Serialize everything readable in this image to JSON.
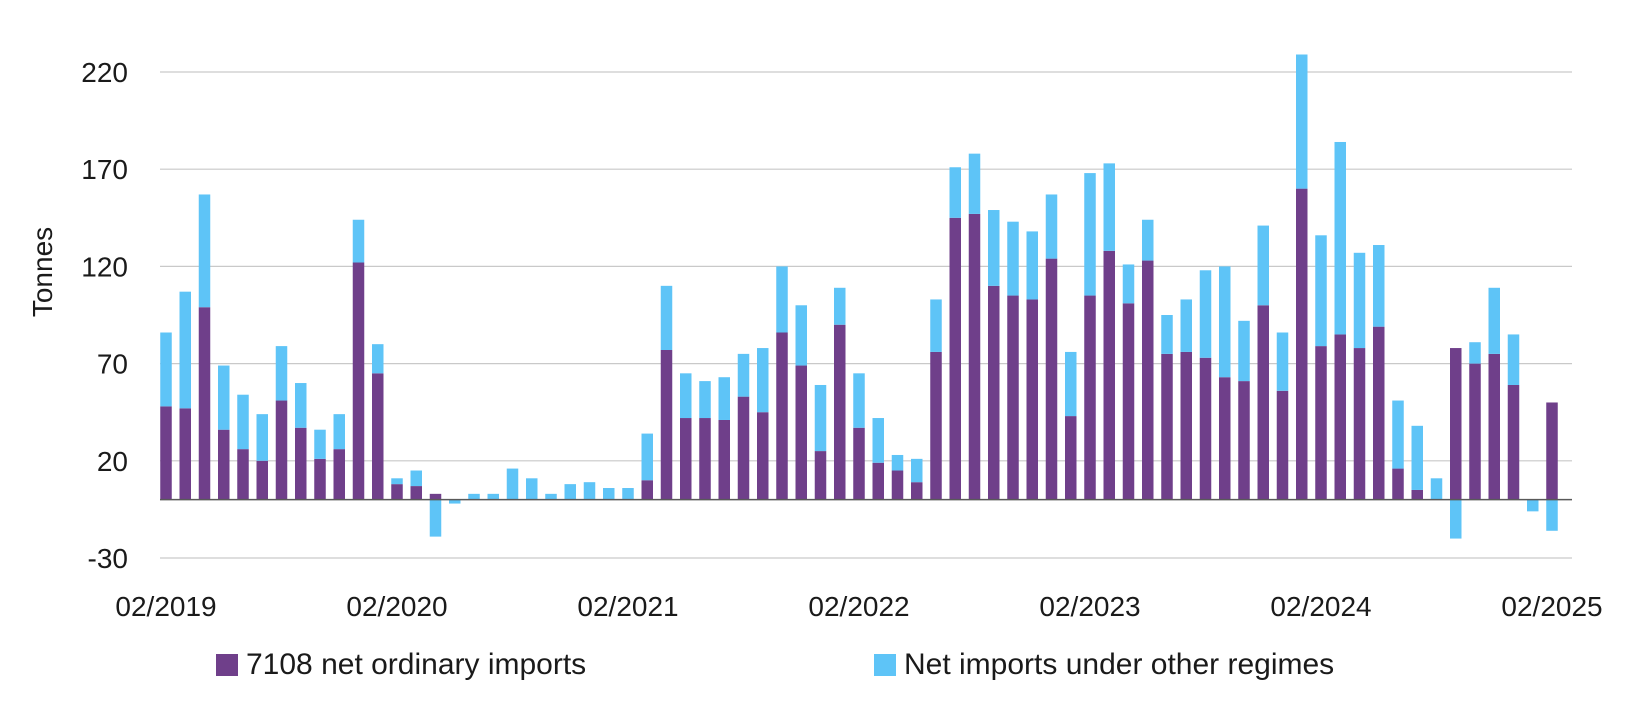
{
  "chart_data": {
    "type": "bar",
    "stacked": true,
    "ylabel": "Tonnes",
    "xlabel": "",
    "ylim": [
      -30,
      220
    ],
    "yticks": [
      220,
      170,
      120,
      70,
      20,
      -30
    ],
    "xticks": [
      "02/2019",
      "02/2020",
      "02/2021",
      "02/2022",
      "02/2023",
      "02/2024",
      "02/2025"
    ],
    "grid": true,
    "legend_position": "bottom",
    "series": [
      {
        "name": "7108 net ordinary imports",
        "color": "#6F3F8A",
        "values": [
          48,
          47,
          99,
          36,
          26,
          20,
          51,
          37,
          21,
          26,
          122,
          65,
          8,
          7,
          3,
          0,
          0,
          0,
          0,
          0,
          0,
          0,
          0,
          0,
          0,
          10,
          77,
          42,
          42,
          41,
          53,
          45,
          86,
          69,
          25,
          90,
          37,
          19,
          15,
          9,
          76,
          145,
          147,
          110,
          105,
          103,
          124,
          43,
          105,
          128,
          101,
          123,
          75,
          76,
          73,
          63,
          61,
          100,
          56,
          160,
          79,
          85,
          78,
          89,
          16,
          5,
          0,
          78,
          70,
          75,
          59,
          0,
          50
        ]
      },
      {
        "name": "Net imports under other regimes",
        "color": "#5EC4F7",
        "values": [
          38,
          60,
          58,
          33,
          28,
          24,
          28,
          23,
          15,
          18,
          22,
          15,
          3,
          8,
          -19,
          -2,
          3,
          3,
          16,
          11,
          3,
          8,
          9,
          6,
          6,
          24,
          33,
          23,
          19,
          22,
          22,
          33,
          34,
          31,
          34,
          19,
          28,
          23,
          8,
          12,
          27,
          26,
          31,
          39,
          38,
          35,
          33,
          33,
          63,
          45,
          20,
          21,
          20,
          27,
          45,
          57,
          31,
          41,
          30,
          69,
          57,
          99,
          49,
          42,
          35,
          33,
          11,
          -20,
          11,
          34,
          26,
          -6,
          -16
        ]
      }
    ]
  }
}
